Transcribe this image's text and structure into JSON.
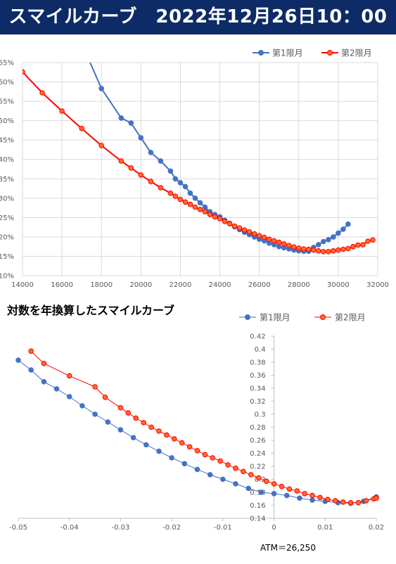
{
  "header": {
    "title": "スマイルカーブ　2022年12月26日10：00"
  },
  "section2": {
    "title": "対数を年換算したスマイルカーブ"
  },
  "atm_label": "ATM＝26,250",
  "colors": {
    "blue": "#4472c4",
    "red": "#ff0000",
    "marker_red_fill": "#ff6a2a",
    "banner": "#0d2b66"
  },
  "chart_data": [
    {
      "type": "line",
      "xlim": [
        14000,
        32000
      ],
      "ylim": [
        10,
        65
      ],
      "x_ticks": [
        "14000",
        "16000",
        "18000",
        "20000",
        "22000",
        "24000",
        "26000",
        "28000",
        "30000",
        "32000"
      ],
      "y_ticks": [
        "10%",
        "15%",
        "20%",
        "25%",
        "30%",
        "35%",
        "40%",
        "45%",
        "50%",
        "55%",
        "60%",
        "65%"
      ],
      "legend_position": "top-right",
      "grid": true,
      "series": [
        {
          "name": "第1限月",
          "points": [
            [
              17000,
              70.0
            ],
            [
              18000,
              58.3
            ],
            [
              19000,
              50.7
            ],
            [
              19500,
              49.4
            ],
            [
              20000,
              45.6
            ],
            [
              20500,
              41.8
            ],
            [
              21000,
              39.6
            ],
            [
              21500,
              37.0
            ],
            [
              21750,
              35.0
            ],
            [
              22000,
              34.0
            ],
            [
              22250,
              33.0
            ],
            [
              22500,
              31.3
            ],
            [
              22750,
              30.0
            ],
            [
              23000,
              28.8
            ],
            [
              23250,
              27.7
            ],
            [
              23500,
              26.5
            ],
            [
              23750,
              25.8
            ],
            [
              24000,
              25.2
            ],
            [
              24250,
              24.3
            ],
            [
              24500,
              23.5
            ],
            [
              24750,
              22.6
            ],
            [
              25000,
              21.9
            ],
            [
              25250,
              21.2
            ],
            [
              25500,
              20.6
            ],
            [
              25750,
              20.0
            ],
            [
              26000,
              19.4
            ],
            [
              26250,
              19.0
            ],
            [
              26500,
              18.4
            ],
            [
              26750,
              18.0
            ],
            [
              27000,
              17.5
            ],
            [
              27250,
              17.2
            ],
            [
              27500,
              16.9
            ],
            [
              27750,
              16.6
            ],
            [
              28000,
              16.4
            ],
            [
              28250,
              16.3
            ],
            [
              28500,
              16.3
            ],
            [
              28750,
              17.3
            ],
            [
              29000,
              18.0
            ],
            [
              29250,
              18.8
            ],
            [
              29500,
              19.3
            ],
            [
              29750,
              20.0
            ],
            [
              30000,
              21.0
            ],
            [
              30250,
              22.0
            ],
            [
              30500,
              23.3
            ]
          ]
        },
        {
          "name": "第2限月",
          "points": [
            [
              14000,
              62.6
            ],
            [
              15000,
              57.2
            ],
            [
              16000,
              52.5
            ],
            [
              17000,
              48.0
            ],
            [
              18000,
              43.6
            ],
            [
              19000,
              39.6
            ],
            [
              19500,
              37.8
            ],
            [
              20000,
              36.0
            ],
            [
              20500,
              34.3
            ],
            [
              21000,
              32.7
            ],
            [
              21500,
              31.3
            ],
            [
              21750,
              30.5
            ],
            [
              22000,
              29.7
            ],
            [
              22250,
              29.0
            ],
            [
              22500,
              28.4
            ],
            [
              22750,
              27.7
            ],
            [
              23000,
              27.1
            ],
            [
              23250,
              26.5
            ],
            [
              23500,
              25.8
            ],
            [
              23750,
              25.2
            ],
            [
              24000,
              24.7
            ],
            [
              24250,
              24.0
            ],
            [
              24500,
              23.4
            ],
            [
              24750,
              22.8
            ],
            [
              25000,
              22.3
            ],
            [
              25250,
              21.8
            ],
            [
              25500,
              21.3
            ],
            [
              25750,
              20.8
            ],
            [
              26000,
              20.3
            ],
            [
              26250,
              19.9
            ],
            [
              26500,
              19.4
            ],
            [
              26750,
              19.0
            ],
            [
              27000,
              18.6
            ],
            [
              27250,
              18.2
            ],
            [
              27500,
              17.8
            ],
            [
              27750,
              17.4
            ],
            [
              28000,
              17.1
            ],
            [
              28250,
              16.9
            ],
            [
              28500,
              16.8
            ],
            [
              28750,
              16.6
            ],
            [
              29000,
              16.4
            ],
            [
              29250,
              16.2
            ],
            [
              29500,
              16.2
            ],
            [
              29750,
              16.4
            ],
            [
              30000,
              16.6
            ],
            [
              30250,
              16.8
            ],
            [
              30500,
              17.0
            ],
            [
              30750,
              17.5
            ],
            [
              31000,
              17.9
            ],
            [
              31250,
              18.0
            ],
            [
              31500,
              18.9
            ],
            [
              31750,
              19.2
            ]
          ]
        }
      ]
    },
    {
      "type": "line",
      "xlim": [
        -0.05,
        0.02
      ],
      "ylim": [
        0.14,
        0.42
      ],
      "x_ticks": [
        "-0.05",
        "-0.04",
        "-0.03",
        "-0.02",
        "-0.01",
        "0",
        "0.01",
        "0.02"
      ],
      "y_ticks": [
        "0.14",
        "0.16",
        "0.18",
        "0.2",
        "0.22",
        "0.24",
        "0.26",
        "0.28",
        "0.3",
        "0.32",
        "0.34",
        "0.36",
        "0.38",
        "0.4",
        "0.42"
      ],
      "legend_position": "top-center",
      "grid": false,
      "series": [
        {
          "name": "第1限月",
          "points": [
            [
              -0.05,
              0.383
            ],
            [
              -0.0475,
              0.368
            ],
            [
              -0.045,
              0.35
            ],
            [
              -0.0425,
              0.339
            ],
            [
              -0.04,
              0.327
            ],
            [
              -0.0375,
              0.313
            ],
            [
              -0.035,
              0.3
            ],
            [
              -0.0325,
              0.288
            ],
            [
              -0.03,
              0.276
            ],
            [
              -0.0275,
              0.264
            ],
            [
              -0.025,
              0.253
            ],
            [
              -0.0225,
              0.243
            ],
            [
              -0.02,
              0.233
            ],
            [
              -0.0175,
              0.224
            ],
            [
              -0.015,
              0.215
            ],
            [
              -0.0125,
              0.207
            ],
            [
              -0.01,
              0.2
            ],
            [
              -0.0075,
              0.193
            ],
            [
              -0.005,
              0.186
            ],
            [
              -0.0025,
              0.18
            ],
            [
              0.0,
              0.178
            ],
            [
              0.0025,
              0.175
            ],
            [
              0.005,
              0.171
            ],
            [
              0.0075,
              0.168
            ],
            [
              0.01,
              0.166
            ],
            [
              0.0125,
              0.164
            ],
            [
              0.015,
              0.163
            ],
            [
              0.0175,
              0.166
            ],
            [
              0.02,
              0.173
            ]
          ]
        },
        {
          "name": "第2限月",
          "points": [
            [
              -0.0475,
              0.397
            ],
            [
              -0.045,
              0.378
            ],
            [
              -0.04,
              0.359
            ],
            [
              -0.035,
              0.342
            ],
            [
              -0.033,
              0.326
            ],
            [
              -0.03,
              0.31
            ],
            [
              -0.0285,
              0.302
            ],
            [
              -0.027,
              0.294
            ],
            [
              -0.0255,
              0.287
            ],
            [
              -0.024,
              0.28
            ],
            [
              -0.0225,
              0.274
            ],
            [
              -0.021,
              0.268
            ],
            [
              -0.0195,
              0.262
            ],
            [
              -0.018,
              0.256
            ],
            [
              -0.0165,
              0.25
            ],
            [
              -0.015,
              0.244
            ],
            [
              -0.0135,
              0.238
            ],
            [
              -0.012,
              0.233
            ],
            [
              -0.0105,
              0.228
            ],
            [
              -0.009,
              0.222
            ],
            [
              -0.0075,
              0.217
            ],
            [
              -0.006,
              0.212
            ],
            [
              -0.0045,
              0.207
            ],
            [
              -0.003,
              0.202
            ],
            [
              -0.0015,
              0.197
            ],
            [
              0.0,
              0.193
            ],
            [
              0.0015,
              0.189
            ],
            [
              0.003,
              0.185
            ],
            [
              0.0045,
              0.182
            ],
            [
              0.006,
              0.178
            ],
            [
              0.0075,
              0.175
            ],
            [
              0.009,
              0.172
            ],
            [
              0.0105,
              0.169
            ],
            [
              0.012,
              0.167
            ],
            [
              0.0135,
              0.165
            ],
            [
              0.015,
              0.164
            ],
            [
              0.0165,
              0.164
            ],
            [
              0.018,
              0.167
            ],
            [
              0.0195,
              0.17
            ],
            [
              0.02,
              0.171
            ]
          ]
        }
      ]
    }
  ]
}
